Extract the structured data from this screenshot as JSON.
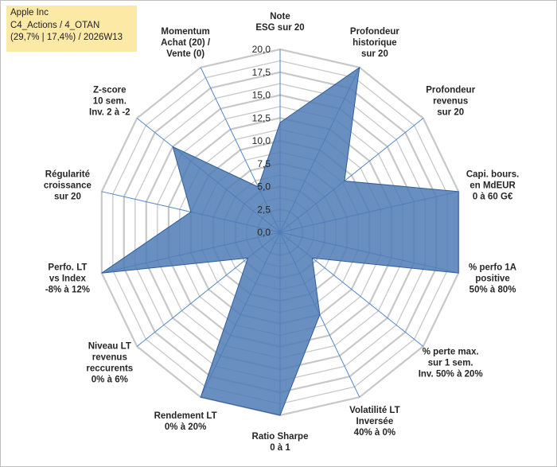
{
  "title": {
    "line1": "Apple Inc",
    "line2": "C4_Actions / 4_OTAN",
    "line3": "(29,7% | 17,4%) / 2026W13"
  },
  "chart_data": {
    "type": "radar",
    "rmax": 20,
    "grid_step": 1.25,
    "tick_labels": [
      "0,0",
      "2,5",
      "5,0",
      "7,5",
      "10,0",
      "12,5",
      "15,0",
      "17,5",
      "20,0"
    ],
    "ticks": [
      0,
      2.5,
      5,
      7.5,
      10,
      12.5,
      15,
      17.5,
      20
    ],
    "colors": {
      "fill": "#4f7bb5",
      "stroke": "#2f5d9a",
      "grid": "#c8c8c8",
      "axis": "#4f86c6"
    },
    "axes": [
      {
        "label": [
          "Note",
          "ESG sur 20"
        ],
        "value": 12
      },
      {
        "label": [
          "Profondeur",
          "historique",
          "sur 20"
        ],
        "value": 20
      },
      {
        "label": [
          "Profondeur",
          "revenus",
          "sur 20"
        ],
        "value": 9
      },
      {
        "label": [
          "Capi. bours.",
          "en MdEUR",
          "0 à 60 G€"
        ],
        "value": 20
      },
      {
        "label": [
          "% perfo 1A",
          "positive",
          "50% à 80%"
        ],
        "value": 20
      },
      {
        "label": [
          "% perte max.",
          "sur 1 sem.",
          "Inv. 50% à 20%"
        ],
        "value": 4.5
      },
      {
        "label": [
          "Volatilité LT",
          "Inversée",
          "40% à 0%"
        ],
        "value": 10
      },
      {
        "label": [
          "Ratio Sharpe",
          "0 à 1"
        ],
        "value": 20
      },
      {
        "label": [
          "Rendement LT",
          "0% à 20%"
        ],
        "value": 20
      },
      {
        "label": [
          "Niveau LT",
          "revenus",
          "reccurents",
          "0% à 6%"
        ],
        "value": 4.5
      },
      {
        "label": [
          "Perfo. LT",
          "vs Index",
          "-8% à 12%"
        ],
        "value": 20
      },
      {
        "label": [
          "Régularité",
          "croissance",
          "sur 20"
        ],
        "value": 10
      },
      {
        "label": [
          "Z-score",
          "10 sem.",
          "Inv. 2 à -2"
        ],
        "value": 15
      },
      {
        "label": [
          "Momentum",
          "Achat (20) /",
          "Vente (0)"
        ],
        "value": 5.5
      }
    ]
  }
}
